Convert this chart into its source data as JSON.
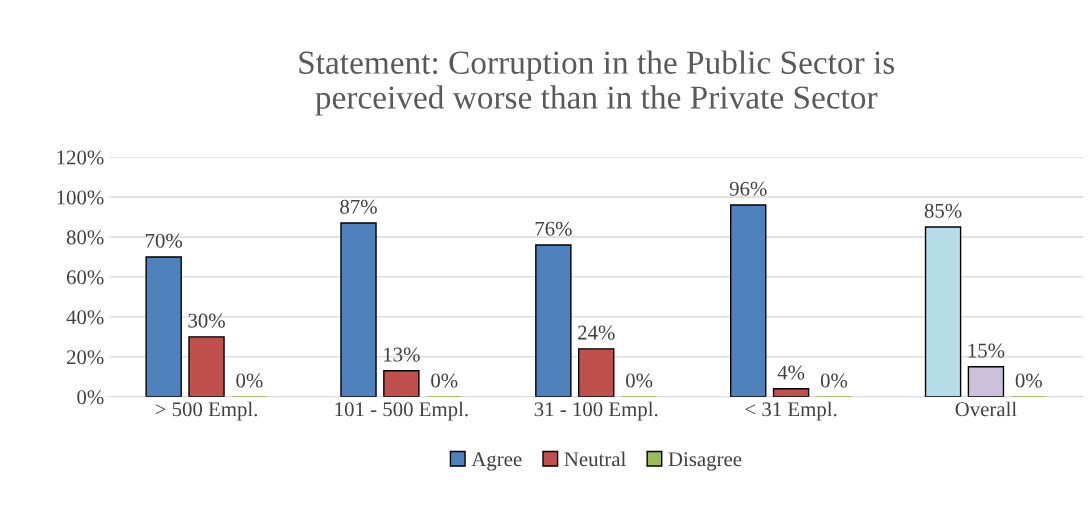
{
  "chart_data": {
    "type": "bar",
    "title": "Statement: Corruption in the Public Sector is\nperceived worse than in the Private Sector",
    "categories": [
      "> 500 Empl.",
      "101 - 500 Empl.",
      "31 - 100 Empl.",
      "< 31 Empl.",
      "Overall"
    ],
    "series": [
      {
        "name": "Agree",
        "color": "#4f81bd",
        "colors": [
          "#4f81bd",
          "#4f81bd",
          "#4f81bd",
          "#4f81bd",
          "#b7dde8"
        ],
        "values": [
          70,
          87,
          76,
          96,
          85
        ],
        "value_labels": [
          "70%",
          "87%",
          "76%",
          "96%",
          "85%"
        ]
      },
      {
        "name": "Neutral",
        "color": "#c0504d",
        "colors": [
          "#c0504d",
          "#c0504d",
          "#c0504d",
          "#c0504d",
          "#ccc0da"
        ],
        "values": [
          30,
          13,
          24,
          4,
          15
        ],
        "value_labels": [
          "30%",
          "13%",
          "24%",
          "4%",
          "15%"
        ]
      },
      {
        "name": "Disagree",
        "color": "#9bbb59",
        "colors": [
          "#9bbb59",
          "#9bbb59",
          "#9bbb59",
          "#9bbb59",
          "#9bbb59"
        ],
        "values": [
          0,
          0,
          0,
          0,
          0
        ],
        "value_labels": [
          "0%",
          "0%",
          "0%",
          "0%",
          "0%"
        ]
      }
    ],
    "ylim": [
      0,
      120
    ],
    "yticks": [
      {
        "value": 0,
        "label": "0%"
      },
      {
        "value": 20,
        "label": "20%"
      },
      {
        "value": 40,
        "label": "40%"
      },
      {
        "value": 60,
        "label": "60%"
      },
      {
        "value": 80,
        "label": "80%"
      },
      {
        "value": 100,
        "label": "100%"
      },
      {
        "value": 120,
        "label": "120%"
      }
    ],
    "grid": "y",
    "legend": "bottom"
  }
}
